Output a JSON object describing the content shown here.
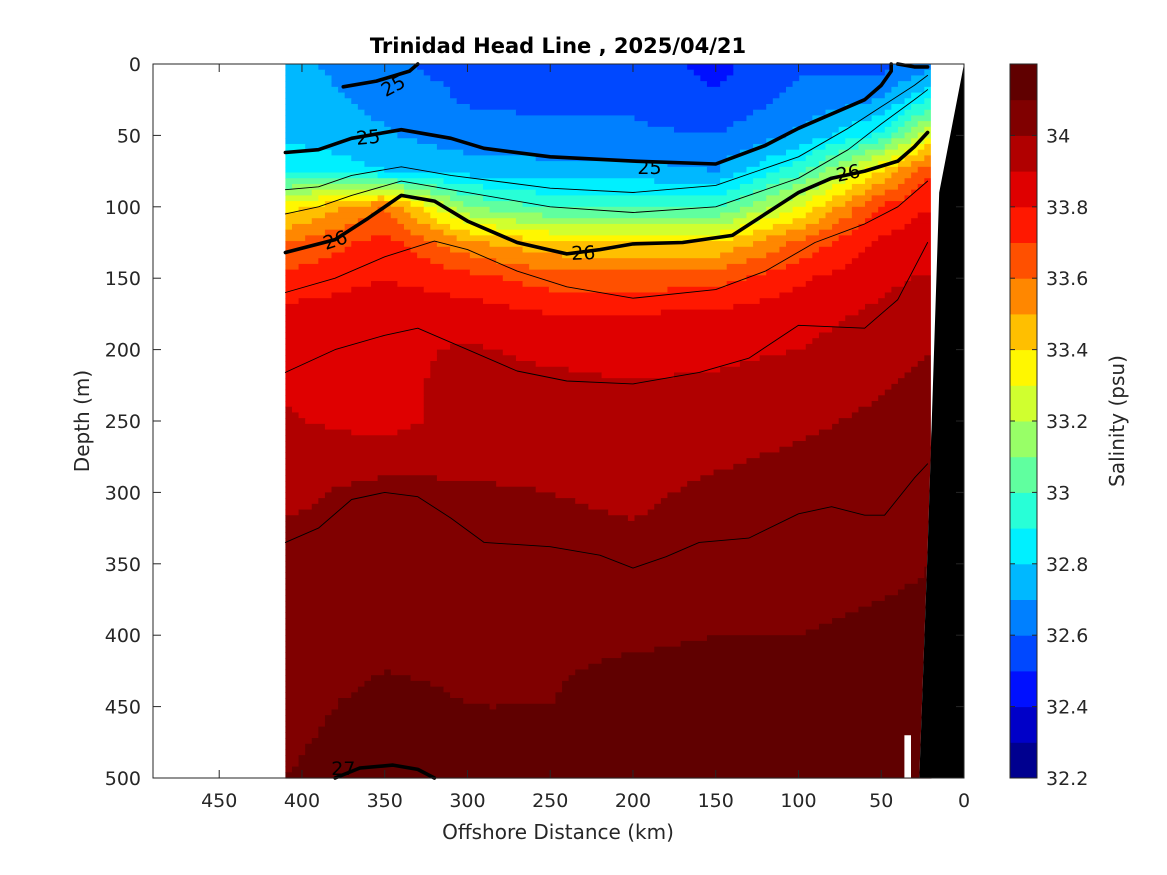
{
  "chart_data": {
    "type": "heatmap",
    "title": "Trinidad Head Line , 2025/04/21",
    "xlabel": "Offshore Distance (km)",
    "ylabel": "Depth (m)",
    "xlim": [
      490,
      0
    ],
    "ylim": [
      0,
      500
    ],
    "x_ticks": [
      450,
      400,
      350,
      300,
      250,
      200,
      150,
      100,
      50,
      0
    ],
    "y_ticks": [
      0,
      50,
      100,
      150,
      200,
      250,
      300,
      350,
      400,
      450,
      500
    ],
    "colorbar": {
      "label": "Salinity (psu)",
      "range": [
        32.2,
        34.2
      ],
      "ticks": [
        32.2,
        32.4,
        32.6,
        32.8,
        33,
        33.2,
        33.4,
        33.6,
        33.8,
        34
      ],
      "tick_labels": [
        "32.2",
        "32.4",
        "32.6",
        "32.8",
        "33",
        "33.2",
        "33.4",
        "33.6",
        "33.8",
        "34"
      ],
      "levels": [
        32.2,
        32.3,
        32.4,
        32.5,
        32.6,
        32.7,
        32.8,
        32.9,
        33.0,
        33.1,
        33.2,
        33.3,
        33.4,
        33.5,
        33.6,
        33.7,
        33.8,
        33.9,
        34.0,
        34.1,
        34.2
      ],
      "colors": [
        "#00008f",
        "#0000c8",
        "#0010ff",
        "#0048ff",
        "#0080ff",
        "#00b8ff",
        "#00f0ff",
        "#28ffd7",
        "#60ff9f",
        "#98ff67",
        "#d0ff2f",
        "#fff700",
        "#ffbf00",
        "#ff8700",
        "#ff5000",
        "#ff1800",
        "#df0000",
        "#b00000",
        "#800000",
        "#600000"
      ]
    },
    "data_region": {
      "x_start_km": 410,
      "x_end_km": 20,
      "depth_start_m": 0,
      "depth_end_m": 500
    },
    "salinity_field": {
      "x_km": [
        410,
        350,
        300,
        250,
        200,
        150,
        100,
        50,
        20
      ],
      "depth_m": [
        0,
        25,
        50,
        75,
        100,
        125,
        150,
        175,
        200,
        250,
        300,
        350,
        400,
        450,
        500
      ],
      "values": [
        [
          32.74,
          32.62,
          32.56,
          32.54,
          32.54,
          32.47,
          32.58,
          32.56,
          32.66
        ],
        [
          32.76,
          32.67,
          32.59,
          32.58,
          32.58,
          32.51,
          32.63,
          32.7,
          32.9
        ],
        [
          32.78,
          32.71,
          32.64,
          32.62,
          32.62,
          32.6,
          32.72,
          32.93,
          33.3
        ],
        [
          32.9,
          32.8,
          32.76,
          32.74,
          32.74,
          32.7,
          32.96,
          33.4,
          33.7
        ],
        [
          33.35,
          33.6,
          33.1,
          32.98,
          32.98,
          32.98,
          33.3,
          33.72,
          33.8
        ],
        [
          33.6,
          33.74,
          33.52,
          33.42,
          33.4,
          33.4,
          33.62,
          33.82,
          33.86
        ],
        [
          33.73,
          33.8,
          33.74,
          33.65,
          33.64,
          33.66,
          33.78,
          33.88,
          33.91
        ],
        [
          33.83,
          33.86,
          33.85,
          33.8,
          33.8,
          33.82,
          33.86,
          33.92,
          33.95
        ],
        [
          33.87,
          33.88,
          33.91,
          33.88,
          33.87,
          33.88,
          33.9,
          33.96,
          34.0
        ],
        [
          33.91,
          33.86,
          33.95,
          33.96,
          33.94,
          33.95,
          33.98,
          34.02,
          34.05
        ],
        [
          33.97,
          34.04,
          34.01,
          34.0,
          33.98,
          34.02,
          34.05,
          34.07,
          34.08
        ],
        [
          34.05,
          34.07,
          34.06,
          34.05,
          34.03,
          34.07,
          34.08,
          34.09,
          34.1
        ],
        [
          34.08,
          34.09,
          34.09,
          34.09,
          34.09,
          34.1,
          34.1,
          34.11,
          34.11
        ],
        [
          34.09,
          34.11,
          34.1,
          34.1,
          34.13,
          34.13,
          34.13,
          34.12,
          34.12
        ],
        [
          34.1,
          34.12,
          34.11,
          34.11,
          34.14,
          34.14,
          34.14,
          34.13,
          34.13
        ]
      ]
    },
    "density_contours": [
      {
        "label": "25",
        "bold": true,
        "points": [
          [
            410,
            62
          ],
          [
            390,
            60
          ],
          [
            370,
            52
          ],
          [
            340,
            46
          ],
          [
            310,
            52
          ],
          [
            290,
            59
          ],
          [
            250,
            65
          ],
          [
            200,
            68
          ],
          [
            150,
            70
          ],
          [
            120,
            57
          ],
          [
            100,
            45
          ],
          [
            80,
            35
          ],
          [
            60,
            25
          ],
          [
            50,
            15
          ],
          [
            44,
            5
          ],
          [
            44,
            0
          ]
        ]
      },
      {
        "label": "25",
        "bold": true,
        "points": [
          [
            375,
            16
          ],
          [
            355,
            12
          ],
          [
            335,
            5
          ],
          [
            330,
            0
          ]
        ]
      },
      {
        "label": "25",
        "bold": true,
        "points": [
          [
            40,
            0
          ],
          [
            30,
            2
          ],
          [
            22,
            2
          ]
        ]
      },
      {
        "label": "",
        "bold": false,
        "points": [
          [
            410,
            88
          ],
          [
            390,
            86
          ],
          [
            370,
            78
          ],
          [
            340,
            72
          ],
          [
            310,
            78
          ],
          [
            250,
            87
          ],
          [
            200,
            90
          ],
          [
            150,
            85
          ],
          [
            100,
            65
          ],
          [
            70,
            45
          ],
          [
            50,
            30
          ],
          [
            30,
            15
          ],
          [
            22,
            8
          ]
        ]
      },
      {
        "label": "",
        "bold": false,
        "points": [
          [
            410,
            105
          ],
          [
            390,
            100
          ],
          [
            370,
            92
          ],
          [
            340,
            82
          ],
          [
            310,
            88
          ],
          [
            250,
            100
          ],
          [
            200,
            104
          ],
          [
            150,
            100
          ],
          [
            100,
            80
          ],
          [
            70,
            60
          ],
          [
            50,
            42
          ],
          [
            30,
            25
          ],
          [
            22,
            18
          ]
        ]
      },
      {
        "label": "26",
        "bold": true,
        "points": [
          [
            410,
            132
          ],
          [
            380,
            123
          ],
          [
            360,
            108
          ],
          [
            340,
            92
          ],
          [
            320,
            96
          ],
          [
            300,
            110
          ],
          [
            270,
            125
          ],
          [
            240,
            133
          ],
          [
            220,
            130
          ],
          [
            200,
            126
          ],
          [
            170,
            125
          ],
          [
            140,
            120
          ],
          [
            120,
            105
          ],
          [
            100,
            90
          ],
          [
            80,
            80
          ],
          [
            60,
            75
          ],
          [
            40,
            68
          ],
          [
            30,
            58
          ],
          [
            22,
            48
          ]
        ]
      },
      {
        "label": "",
        "bold": false,
        "points": [
          [
            410,
            160
          ],
          [
            380,
            150
          ],
          [
            350,
            135
          ],
          [
            320,
            124
          ],
          [
            300,
            130
          ],
          [
            270,
            145
          ],
          [
            240,
            156
          ],
          [
            200,
            164
          ],
          [
            150,
            158
          ],
          [
            120,
            145
          ],
          [
            90,
            125
          ],
          [
            60,
            112
          ],
          [
            40,
            100
          ],
          [
            22,
            82
          ]
        ]
      },
      {
        "label": "",
        "bold": false,
        "points": [
          [
            410,
            216
          ],
          [
            380,
            200
          ],
          [
            350,
            190
          ],
          [
            330,
            185
          ],
          [
            300,
            200
          ],
          [
            270,
            215
          ],
          [
            240,
            222
          ],
          [
            200,
            224
          ],
          [
            160,
            216
          ],
          [
            130,
            206
          ],
          [
            100,
            183
          ],
          [
            60,
            185
          ],
          [
            40,
            165
          ],
          [
            22,
            125
          ]
        ]
      },
      {
        "label": "",
        "bold": false,
        "points": [
          [
            410,
            335
          ],
          [
            390,
            325
          ],
          [
            370,
            305
          ],
          [
            350,
            300
          ],
          [
            330,
            303
          ],
          [
            310,
            318
          ],
          [
            290,
            335
          ],
          [
            250,
            338
          ],
          [
            220,
            344
          ],
          [
            200,
            353
          ],
          [
            180,
            345
          ],
          [
            160,
            335
          ],
          [
            130,
            332
          ],
          [
            100,
            315
          ],
          [
            80,
            310
          ],
          [
            60,
            316
          ],
          [
            48,
            316
          ],
          [
            30,
            290
          ],
          [
            22,
            280
          ]
        ]
      },
      {
        "label": "27",
        "bold": true,
        "points": [
          [
            380,
            500
          ],
          [
            365,
            493
          ],
          [
            345,
            491
          ],
          [
            330,
            494
          ],
          [
            320,
            500
          ]
        ]
      }
    ],
    "contour_labels": [
      {
        "text": "25",
        "x": 345,
        "y": 15,
        "rotate": -28
      },
      {
        "text": "25",
        "x": 360,
        "y": 51,
        "rotate": -5
      },
      {
        "text": "25",
        "x": 190,
        "y": 72,
        "rotate": 0
      },
      {
        "text": "26",
        "x": 380,
        "y": 123,
        "rotate": -18
      },
      {
        "text": "26",
        "x": 230,
        "y": 132,
        "rotate": -2
      },
      {
        "text": "26",
        "x": 70,
        "y": 76,
        "rotate": -12
      },
      {
        "text": "27",
        "x": 375,
        "y": 493,
        "rotate": 0
      }
    ],
    "bathymetry": {
      "color": "#000000",
      "points": [
        [
          27,
          500
        ],
        [
          22,
          340
        ],
        [
          15,
          90
        ],
        [
          0,
          0
        ],
        [
          0,
          500
        ]
      ]
    },
    "nodata_notch": [
      [
        36,
        500
      ],
      [
        36,
        470
      ],
      [
        32,
        470
      ],
      [
        32,
        500
      ]
    ]
  }
}
